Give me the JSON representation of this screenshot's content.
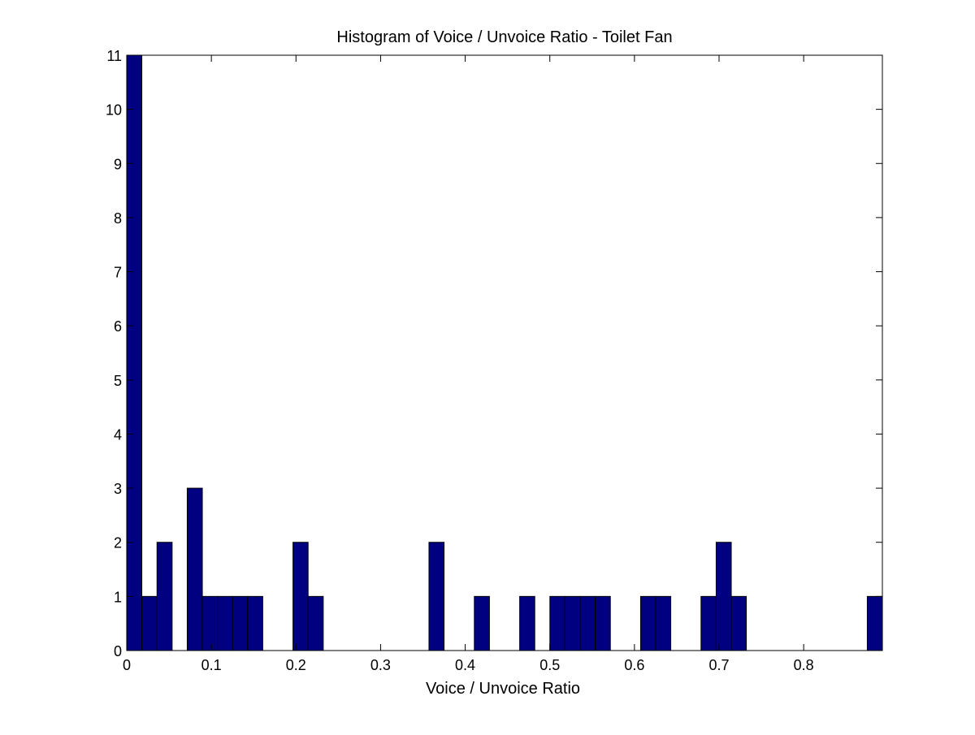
{
  "chart_data": {
    "type": "bar",
    "title": "Histogram of Voice / Unvoice Ratio - Toilet Fan",
    "xlabel": "Voice / Unvoice Ratio",
    "ylabel": "",
    "xlim": [
      0,
      0.893
    ],
    "ylim": [
      0,
      11
    ],
    "xticks": [
      0,
      0.1,
      0.2,
      0.3,
      0.4,
      0.5,
      0.6,
      0.7,
      0.8
    ],
    "xtick_labels": [
      "0",
      "0.1",
      "0.2",
      "0.3",
      "0.4",
      "0.5",
      "0.6",
      "0.7",
      "0.8"
    ],
    "yticks": [
      0,
      1,
      2,
      3,
      4,
      5,
      6,
      7,
      8,
      9,
      10,
      11
    ],
    "ytick_labels": [
      "0",
      "1",
      "2",
      "3",
      "4",
      "5",
      "6",
      "7",
      "8",
      "9",
      "10",
      "11"
    ],
    "bin_width": 0.01786,
    "bin_centers": [
      0.0089,
      0.0268,
      0.0447,
      0.0625,
      0.0804,
      0.0982,
      0.1161,
      0.134,
      0.1518,
      0.1697,
      0.1875,
      0.2054,
      0.2233,
      0.2411,
      0.259,
      0.2768,
      0.2947,
      0.3126,
      0.3304,
      0.3483,
      0.3661,
      0.384,
      0.4019,
      0.4197,
      0.4376,
      0.4554,
      0.4733,
      0.4912,
      0.509,
      0.5269,
      0.5447,
      0.5626,
      0.5805,
      0.5983,
      0.6162,
      0.634,
      0.6519,
      0.6698,
      0.6876,
      0.7055,
      0.7233,
      0.7412,
      0.7591,
      0.7769,
      0.7948,
      0.8126,
      0.8305,
      0.8484,
      0.8662,
      0.8841
    ],
    "values": [
      11,
      1,
      2,
      0,
      3,
      1,
      1,
      1,
      1,
      0,
      0,
      2,
      1,
      0,
      0,
      0,
      0,
      0,
      0,
      0,
      2,
      0,
      0,
      1,
      0,
      0,
      1,
      0,
      1,
      1,
      1,
      1,
      0,
      0,
      1,
      1,
      0,
      0,
      1,
      2,
      1,
      0,
      0,
      0,
      0,
      0,
      0,
      0,
      0,
      1
    ],
    "bar_color": "#000080",
    "edge_color": "#000000",
    "grid": false
  }
}
